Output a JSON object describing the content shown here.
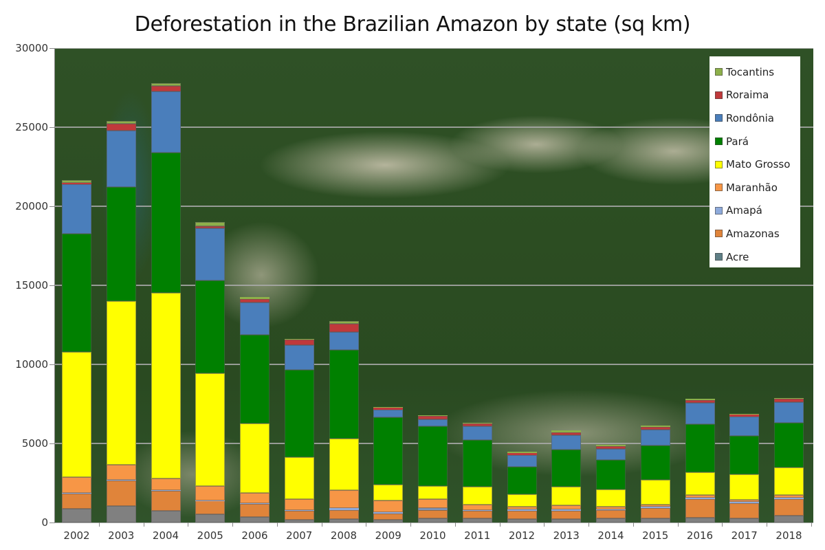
{
  "chart_data": {
    "type": "bar",
    "stacked": true,
    "title": "Deforestation in the Brazilian Amazon by state (sq km)",
    "xlabel": "",
    "ylabel": "",
    "ylim": [
      0,
      30000
    ],
    "yticks": [
      0,
      5000,
      10000,
      15000,
      20000,
      25000,
      30000
    ],
    "grid": true,
    "legend_position": "top-right",
    "background": "satellite image of Amazon forest with cleared patches",
    "categories": [
      "2002",
      "2003",
      "2004",
      "2005",
      "2006",
      "2007",
      "2008",
      "2009",
      "2010",
      "2011",
      "2012",
      "2013",
      "2014",
      "2015",
      "2016",
      "2017",
      "2018"
    ],
    "series": [
      {
        "name": "Acre",
        "color": "#808080",
        "legend_color": "#5f7f86",
        "values": [
          870,
          1040,
          740,
          540,
          360,
          170,
          220,
          170,
          250,
          250,
          220,
          220,
          260,
          260,
          320,
          250,
          430
        ]
      },
      {
        "name": "Amazonas",
        "color": "#e0843a",
        "values": [
          960,
          1610,
          1260,
          840,
          830,
          580,
          580,
          400,
          540,
          480,
          530,
          530,
          510,
          650,
          1160,
          980,
          1060
        ]
      },
      {
        "name": "Amapá",
        "color": "#8eaadb",
        "values": [
          30,
          40,
          40,
          30,
          30,
          40,
          100,
          70,
          140,
          66,
          80,
          80,
          70,
          70,
          70,
          70,
          70
        ]
      },
      {
        "name": "Maranhão",
        "color": "#f79646",
        "values": [
          1010,
          960,
          740,
          910,
          670,
          690,
          1130,
          760,
          560,
          324,
          190,
          270,
          180,
          150,
          190,
          150,
          180
        ]
      },
      {
        "name": "Mato Grosso",
        "color": "#ffff00",
        "values": [
          7900,
          10360,
          11750,
          7130,
          4350,
          2650,
          3260,
          1010,
          810,
          1120,
          770,
          1160,
          1060,
          1580,
          1450,
          1600,
          1740
        ]
      },
      {
        "name": "Pará",
        "color": "#008000",
        "values": [
          7500,
          7200,
          8870,
          5870,
          5650,
          5510,
          5620,
          4250,
          3800,
          2990,
          1740,
          2340,
          1890,
          2140,
          3010,
          2430,
          2830
        ]
      },
      {
        "name": "Rondônia",
        "color": "#4a7ebb",
        "values": [
          3100,
          3560,
          3860,
          3280,
          2030,
          1590,
          1120,
          480,
          430,
          870,
          750,
          940,
          680,
          1020,
          1380,
          1220,
          1300
        ]
      },
      {
        "name": "Roraima",
        "color": "#c0393b",
        "values": [
          90,
          460,
          350,
          140,
          220,
          330,
          550,
          120,
          220,
          140,
          120,
          170,
          190,
          170,
          140,
          130,
          200
        ]
      },
      {
        "name": "Tocantins",
        "color": "#8db04a",
        "values": [
          200,
          150,
          190,
          270,
          120,
          60,
          150,
          50,
          50,
          70,
          60,
          120,
          70,
          90,
          100,
          40,
          60
        ]
      }
    ]
  },
  "legend": {
    "items": [
      {
        "label": "Tocantins",
        "color": "#8db04a"
      },
      {
        "label": "Roraima",
        "color": "#c0393b"
      },
      {
        "label": "Rondônia",
        "color": "#4a7ebb"
      },
      {
        "label": "Pará",
        "color": "#008000"
      },
      {
        "label": "Mato Grosso",
        "color": "#ffff00"
      },
      {
        "label": "Maranhão",
        "color": "#f79646"
      },
      {
        "label": "Amapá",
        "color": "#8eaadb"
      },
      {
        "label": "Amazonas",
        "color": "#e0843a"
      },
      {
        "label": "Acre",
        "color": "#5f7f86"
      }
    ]
  },
  "axis": {
    "y_tick_labels": [
      "0",
      "5000",
      "10000",
      "15000",
      "20000",
      "25000",
      "30000"
    ]
  }
}
